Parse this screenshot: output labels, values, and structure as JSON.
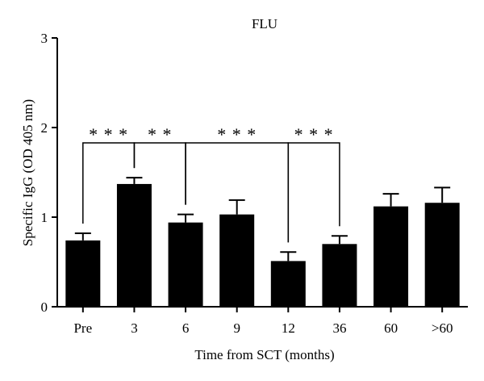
{
  "chart_data": {
    "type": "bar",
    "title": "FLU",
    "xlabel": "Time from SCT (months)",
    "ylabel": "Specific IgG (OD 405 nm)",
    "ylim": [
      0,
      3
    ],
    "yticks": [
      "0",
      "1",
      "2",
      "3"
    ],
    "categories": [
      "Pre",
      "3",
      "6",
      "9",
      "12",
      "36",
      "60",
      ">60"
    ],
    "values": [
      0.74,
      1.37,
      0.94,
      1.03,
      0.51,
      0.7,
      1.12,
      1.16
    ],
    "errors": [
      0.08,
      0.07,
      0.09,
      0.16,
      0.1,
      0.09,
      0.14,
      0.17
    ],
    "bar_color": "#000000",
    "significance": [
      {
        "from": "Pre",
        "to": "3",
        "label": "* * *"
      },
      {
        "from": "3",
        "to": "6",
        "label": "* *"
      },
      {
        "from": "6",
        "to": "12",
        "label": "* * *"
      },
      {
        "from": "12",
        "to": "36",
        "label": "* * *"
      }
    ]
  }
}
